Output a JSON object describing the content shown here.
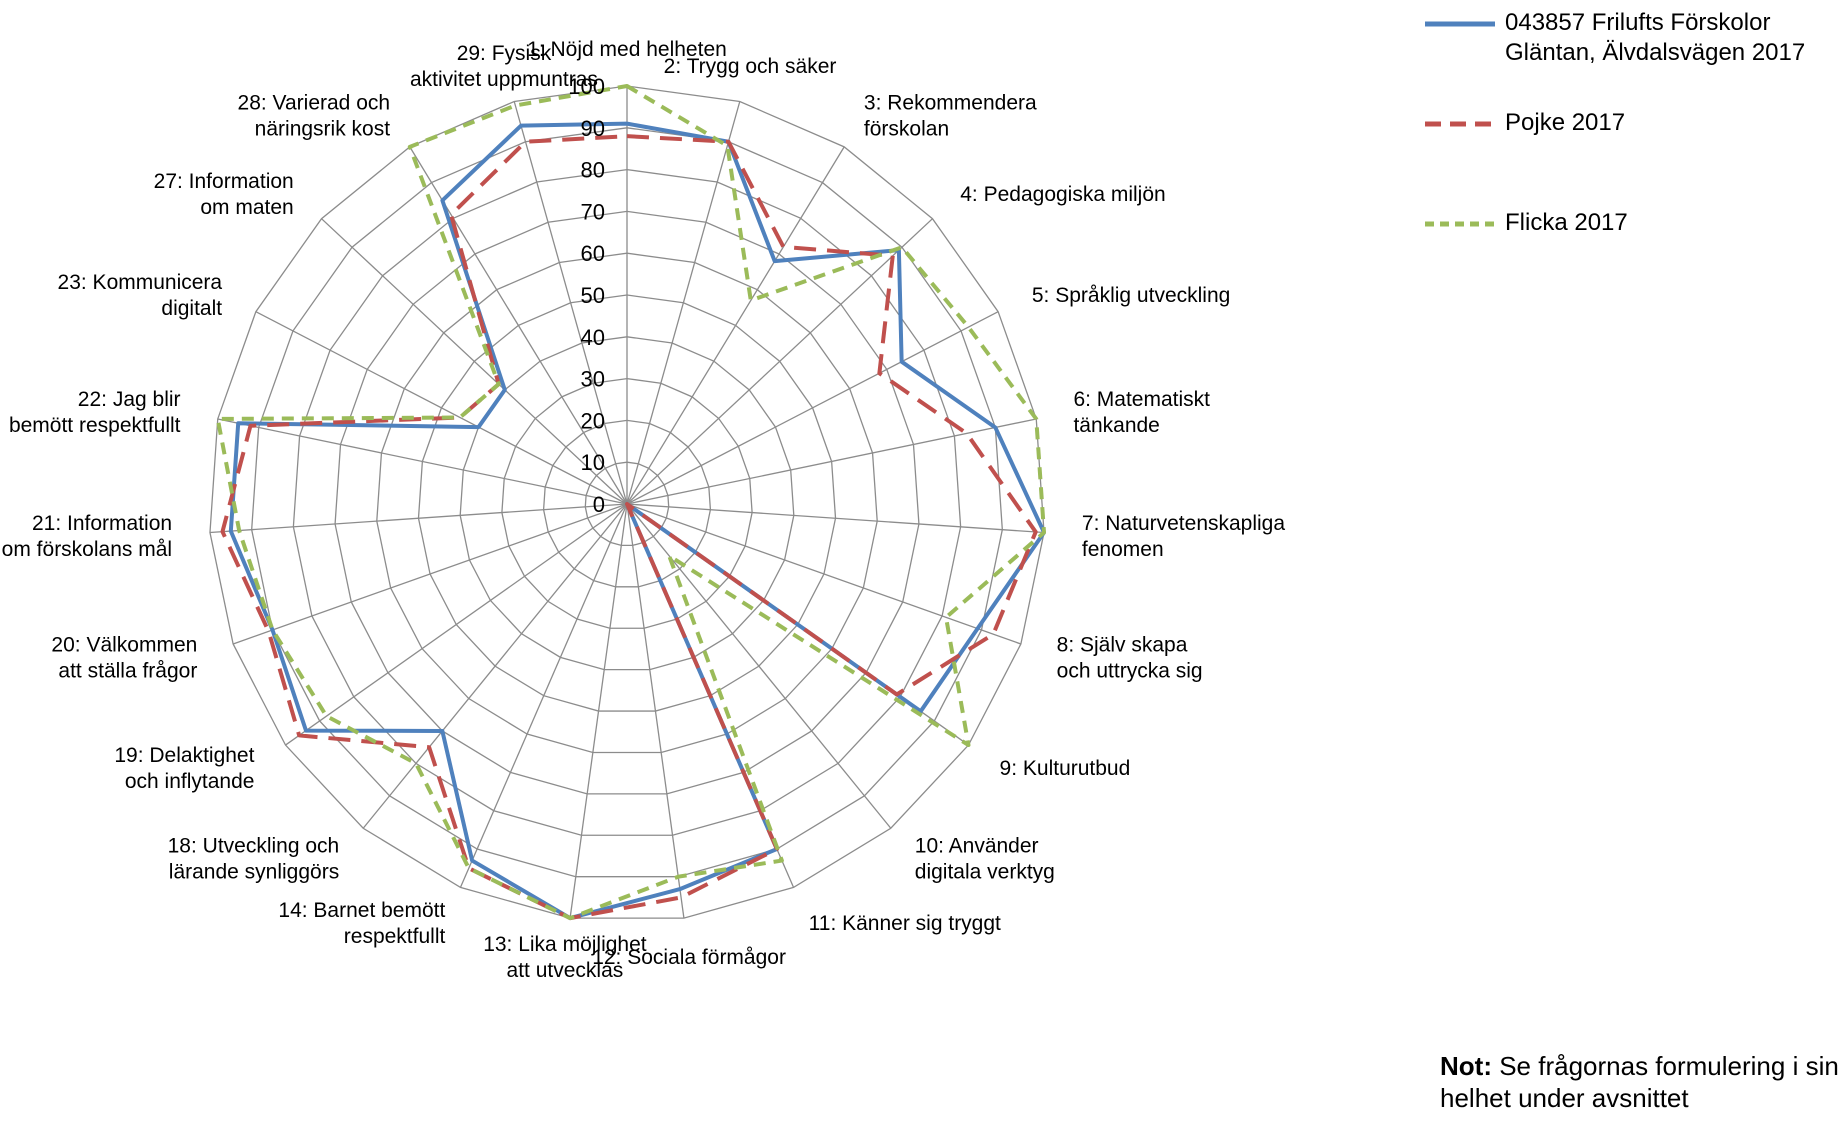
{
  "chart_data": {
    "type": "radar",
    "rlim": [
      0,
      100
    ],
    "ticks": [
      0,
      10,
      20,
      30,
      40,
      50,
      60,
      70,
      80,
      90,
      100
    ],
    "grid": true,
    "legend_position": "top-right",
    "categories": [
      "1: Nöjd med helheten",
      "2: Trygg och säker",
      "3: Rekommendera förskolan",
      "4: Pedagogiska miljön",
      "5: Språklig utveckling",
      "6: Matematiskt tänkande",
      "7: Naturvetenskapliga fenomen",
      "8: Själv skapa och uttrycka sig",
      "9: Kulturutbud",
      "10: Använder digitala verktyg",
      "11: Känner sig tryggt",
      "12: Sociala förmågor",
      "13: Lika möjlighet att utvecklas",
      "14: Barnet bemött respektfullt",
      "18: Utveckling och lärande synliggörs",
      "19: Delaktighet och inflytande",
      "20: Välkommen att ställa frågor",
      "21: Information om förskolans mål",
      "22: Jag blir bemött respektfullt",
      "23: Kommunicera digitalt",
      "27: Information om maten",
      "28: Varierad och näringsrik kost",
      "29: Fysisk aktivitet uppmuntras"
    ],
    "series": [
      {
        "name": "043857 Frilufts Förskolor Gläntan, Älvdalsvägen 2017",
        "color": "#4f81bd",
        "dash": "solid",
        "values": [
          91,
          90,
          68,
          89,
          74,
          90,
          100,
          89,
          86,
          0,
          90,
          93,
          100,
          93,
          70,
          94,
          90,
          95,
          95,
          40,
          40,
          85,
          94
        ]
      },
      {
        "name": "Pojke 2017",
        "color": "#c0504d",
        "dash": "dashed",
        "values": [
          88,
          90,
          72,
          87,
          68,
          83,
          98,
          93,
          79,
          0,
          90,
          95,
          100,
          95,
          75,
          96,
          91,
          97,
          92,
          45,
          42,
          81,
          90
        ]
      },
      {
        "name": "Flicka 2017",
        "color": "#9bbb59",
        "dash": "dotted",
        "values": [
          100,
          89,
          57,
          90,
          92,
          100,
          100,
          81,
          100,
          16,
          93,
          90,
          100,
          95,
          80,
          88,
          90,
          93,
          100,
          45,
          42,
          100,
          99
        ]
      }
    ]
  },
  "legend": {
    "items": [
      "043857 Frilufts Förskolor\nGläntan, Älvdalsvägen 2017",
      "Pojke 2017",
      "Flicka 2017"
    ]
  },
  "note": {
    "label": "Not:",
    "text": " Se frågornas formulering i sin helhet under avsnittet"
  }
}
